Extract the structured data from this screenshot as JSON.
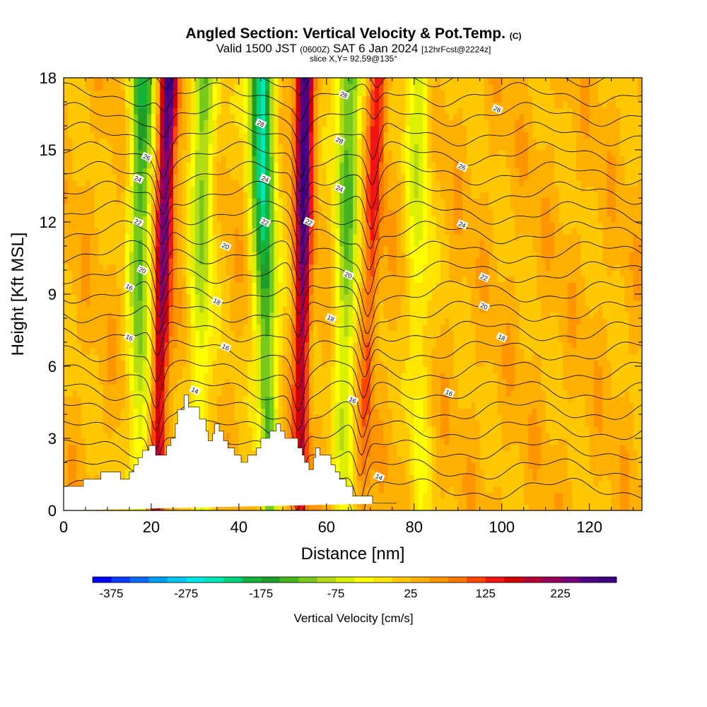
{
  "title": {
    "main": "Angled Section: Vertical Velocity & Pot.Temp.",
    "main_unit": "(C)",
    "valid_prefix": "Valid 1500 JST",
    "valid_utc": "(0600Z)",
    "valid_date": "SAT 6 Jan 2024",
    "valid_fcst": "[12hrFcst@2224z]",
    "slice": "slice X,Y= 92,59@135°"
  },
  "chart_data": {
    "type": "heatmap",
    "xlabel": "Distance [nm]",
    "ylabel": "Height [Kft MSL]",
    "xlim": [
      0,
      132
    ],
    "ylim": [
      0,
      18
    ],
    "x_ticks": [
      "0",
      "20",
      "40",
      "60",
      "80",
      "100",
      "120"
    ],
    "y_ticks": [
      "0",
      "3",
      "6",
      "9",
      "12",
      "15",
      "18"
    ],
    "shaded_field": "Vertical Velocity [cm/s]",
    "colorbar": {
      "label": "Vertical Velocity [cm/s]",
      "tick_labels": [
        "-375",
        "-275",
        "-175",
        "-75",
        "25",
        "125",
        "225"
      ],
      "min": -400,
      "max": 300,
      "step": 25,
      "colors": [
        "#0000ff",
        "#0a3cff",
        "#0a6cf6",
        "#00a0f0",
        "#00c8f0",
        "#00e6e6",
        "#00e6b4",
        "#00d27a",
        "#14b43c",
        "#1e9e28",
        "#46b41e",
        "#78c81e",
        "#b4dc14",
        "#dcf000",
        "#ffff00",
        "#ffe600",
        "#ffc800",
        "#ffb000",
        "#ff9600",
        "#ff7800",
        "#ff4600",
        "#f01414",
        "#d20000",
        "#b40032",
        "#96005a",
        "#780078",
        "#500082",
        "#3c0082"
      ]
    },
    "series": [
      {
        "name": "Vertical Velocity",
        "features": [
          {
            "kind": "updraft",
            "x_base": 21,
            "x_top": 24,
            "peak": 275
          },
          {
            "kind": "downdraft",
            "x_base": 17,
            "x_top": 18,
            "peak": -200
          },
          {
            "kind": "updraft",
            "x_base": 54,
            "x_top": 55,
            "peak": 275
          },
          {
            "kind": "downdraft",
            "x_base": 47,
            "x_top": 45,
            "peak": -275
          },
          {
            "kind": "downdraft",
            "x_base": 31,
            "x_top": 32,
            "peak": -150
          },
          {
            "kind": "downdraft",
            "x_base": 64,
            "x_top": 65,
            "peak": -175
          },
          {
            "kind": "updraft",
            "x_base": 68,
            "x_top": 72,
            "peak": 125
          },
          {
            "kind": "downdraft",
            "x_base": 81,
            "x_top": 81,
            "peak": -100
          }
        ]
      },
      {
        "name": "Pot.Temp.",
        "contour_labels": [
          {
            "text": "28",
            "x": 64,
            "y": 17.3
          },
          {
            "text": "28",
            "x": 99,
            "y": 16.7
          },
          {
            "text": "28",
            "x": 45,
            "y": 16.1
          },
          {
            "text": "28",
            "x": 63,
            "y": 15.4
          },
          {
            "text": "26",
            "x": 19,
            "y": 14.7
          },
          {
            "text": "26",
            "x": 91,
            "y": 14.3
          },
          {
            "text": "24",
            "x": 17,
            "y": 13.8
          },
          {
            "text": "24",
            "x": 46,
            "y": 13.8
          },
          {
            "text": "24",
            "x": 63,
            "y": 13.4
          },
          {
            "text": "22",
            "x": 17,
            "y": 12.0
          },
          {
            "text": "22",
            "x": 46,
            "y": 12.0
          },
          {
            "text": "22",
            "x": 56,
            "y": 12.0
          },
          {
            "text": "24",
            "x": 91,
            "y": 11.9
          },
          {
            "text": "20",
            "x": 37,
            "y": 11.0
          },
          {
            "text": "20",
            "x": 18,
            "y": 10.0
          },
          {
            "text": "20",
            "x": 65,
            "y": 9.8
          },
          {
            "text": "22",
            "x": 96,
            "y": 9.7
          },
          {
            "text": "16",
            "x": 15,
            "y": 9.3
          },
          {
            "text": "18",
            "x": 35,
            "y": 8.7
          },
          {
            "text": "18",
            "x": 61,
            "y": 8.0
          },
          {
            "text": "20",
            "x": 96,
            "y": 8.5
          },
          {
            "text": "16",
            "x": 15,
            "y": 7.2
          },
          {
            "text": "18",
            "x": 100,
            "y": 7.2
          },
          {
            "text": "16",
            "x": 37,
            "y": 6.8
          },
          {
            "text": "14",
            "x": 30,
            "y": 5.0
          },
          {
            "text": "16",
            "x": 88,
            "y": 4.9
          },
          {
            "text": "16",
            "x": 66,
            "y": 4.6
          },
          {
            "text": "14",
            "x": 72,
            "y": 1.4
          }
        ]
      }
    ],
    "terrain": {
      "x": [
        0,
        4.5,
        4.5,
        8.5,
        8.5,
        13,
        13,
        15,
        15,
        16,
        16,
        17,
        17,
        18,
        18,
        19.5,
        19.5,
        21,
        21,
        23.5,
        23.5,
        24.5,
        24.5,
        25.5,
        25.5,
        26,
        26,
        27.5,
        27.5,
        28.5,
        28.5,
        31,
        31,
        32.5,
        32.5,
        33,
        33,
        34,
        34,
        34.5,
        34.5,
        35.5,
        35.5,
        36.5,
        36.5,
        37.5,
        37.5,
        39,
        39,
        40.5,
        40.5,
        42,
        42,
        44,
        44,
        45,
        45,
        47,
        47,
        48.5,
        48.5,
        49.5,
        49.5,
        50.5,
        50.5,
        53.5,
        53.5,
        54.5,
        54.5,
        55,
        55,
        56,
        56,
        57,
        57,
        57.5,
        57.5,
        58.5,
        58.5,
        61,
        61,
        62,
        62,
        63,
        63,
        64.5,
        64.5,
        66,
        66,
        70.5,
        70.5,
        76,
        76,
        132
      ],
      "y": [
        1.0,
        1.0,
        1.3,
        1.3,
        1.6,
        1.6,
        1.3,
        1.3,
        1.6,
        1.6,
        1.9,
        1.9,
        2.2,
        2.2,
        2.5,
        2.5,
        2.7,
        2.7,
        2.3,
        2.3,
        2.7,
        2.7,
        3.0,
        3.0,
        3.6,
        3.6,
        4.2,
        4.2,
        4.8,
        4.8,
        4.3,
        4.3,
        3.8,
        3.8,
        3.3,
        3.3,
        2.9,
        2.9,
        3.2,
        3.2,
        3.6,
        3.6,
        3.3,
        3.3,
        2.9,
        2.9,
        2.6,
        2.6,
        2.3,
        2.3,
        2.0,
        2.0,
        2.3,
        2.3,
        2.6,
        2.6,
        3.0,
        3.0,
        3.3,
        3.3,
        3.6,
        3.6,
        3.3,
        3.3,
        3.0,
        3.0,
        2.6,
        2.6,
        2.3,
        2.3,
        2.0,
        2.0,
        1.7,
        1.7,
        2.2,
        2.2,
        2.6,
        2.6,
        2.3,
        2.3,
        1.9,
        1.9,
        1.6,
        1.6,
        1.3,
        1.3,
        1.0,
        1.0,
        0.6,
        0.6,
        0.3,
        0.3,
        0.3
      ]
    }
  }
}
